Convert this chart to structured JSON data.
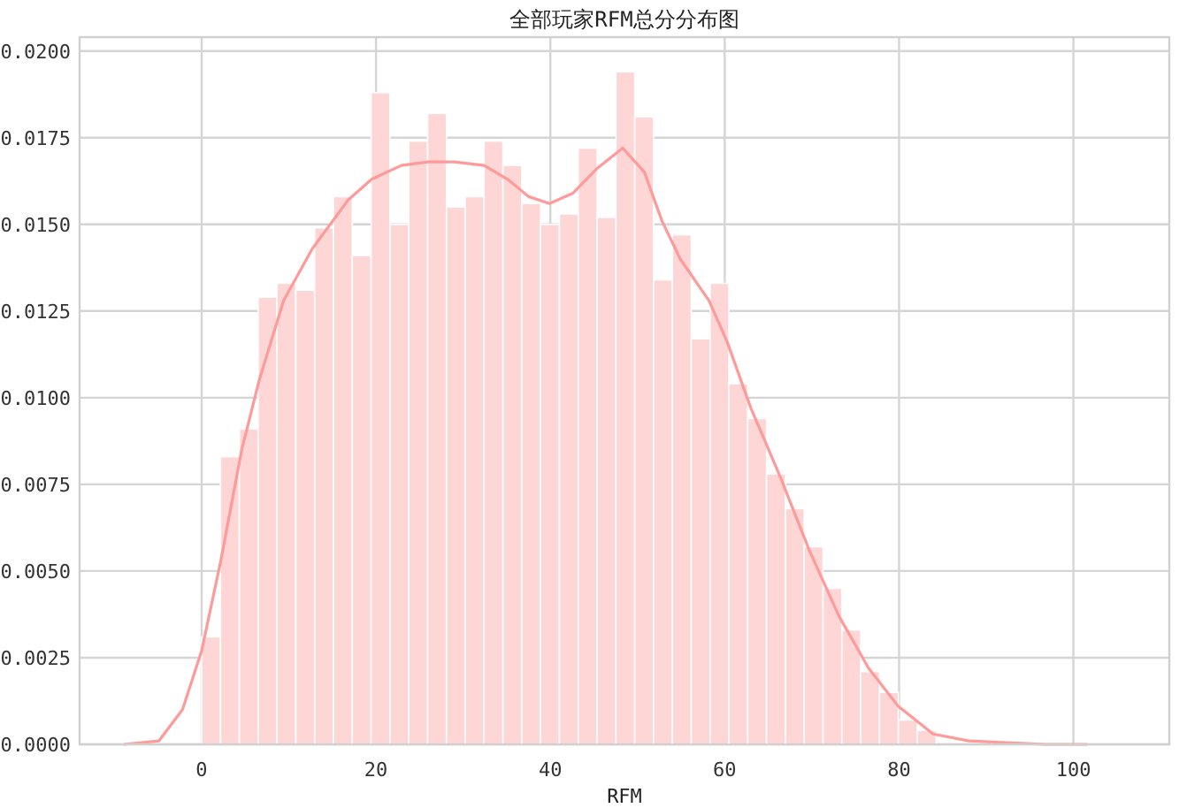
{
  "chart_data": {
    "type": "histogram",
    "title": "全部玩家RFM总分分布图",
    "xlabel": "RFM",
    "bins": [
      0,
      2.16,
      4.32,
      6.48,
      8.64,
      10.8,
      12.96,
      15.12,
      17.28,
      19.44,
      21.6,
      23.76,
      25.92,
      28.08,
      30.24,
      32.4,
      34.56,
      36.72,
      38.88,
      41.04,
      43.2,
      45.36,
      47.52,
      49.68,
      51.84,
      54,
      56.16,
      58.32,
      60.48,
      62.64,
      64.8,
      66.96,
      69.12,
      71.28,
      73.44,
      75.6,
      77.76,
      79.92,
      82.08,
      84.24
    ],
    "values": [
      0.0031,
      0.0083,
      0.0091,
      0.0129,
      0.0133,
      0.0131,
      0.0149,
      0.0158,
      0.0141,
      0.0188,
      0.015,
      0.0174,
      0.0182,
      0.0155,
      0.0158,
      0.0174,
      0.0167,
      0.0156,
      0.015,
      0.0153,
      0.0172,
      0.0152,
      0.0194,
      0.0181,
      0.0134,
      0.0147,
      0.0117,
      0.0133,
      0.0104,
      0.0094,
      0.0078,
      0.0068,
      0.0057,
      0.0045,
      0.0033,
      0.0021,
      0.0015,
      0.0007,
      0.0004
    ],
    "color": "#ffd6d6",
    "series": [
      {
        "type": "line",
        "color": "#ff9a9a",
        "x": [
          -8.9,
          -4.9,
          -2.2,
          0,
          2.2,
          4.6,
          6.6,
          9.4,
          12.7,
          16.8,
          19.5,
          22.9,
          26,
          29,
          32.4,
          35.1,
          37.5,
          39.9,
          42.6,
          45.3,
          48.3,
          50.8,
          52.8,
          54.9,
          58.2,
          60.3,
          63,
          66.4,
          69.7,
          73.1,
          76.5,
          79.9,
          83.9,
          88,
          96.8,
          101.5
        ],
        "values": [
          0,
          0.0001,
          0.001,
          0.0027,
          0.0053,
          0.0085,
          0.0105,
          0.0128,
          0.0143,
          0.0157,
          0.0163,
          0.0167,
          0.0168,
          0.0168,
          0.0167,
          0.0163,
          0.0158,
          0.0156,
          0.0159,
          0.0166,
          0.0172,
          0.0165,
          0.0151,
          0.014,
          0.0128,
          0.0116,
          0.0097,
          0.0077,
          0.0056,
          0.0037,
          0.0022,
          0.0011,
          0.0003,
          0.0001,
          0,
          0
        ]
      }
    ],
    "xlim": [
      -14,
      111
    ],
    "ylim": [
      0,
      0.0204
    ],
    "xticks": [
      0,
      20,
      40,
      60,
      80,
      100
    ],
    "yticks": [
      {
        "value": 0,
        "label": "0.0000"
      },
      {
        "value": 0.0025,
        "label": "0.0025"
      },
      {
        "value": 0.005,
        "label": "0.0050"
      },
      {
        "value": 0.0075,
        "label": "0.0075"
      },
      {
        "value": 0.01,
        "label": "0.0100"
      },
      {
        "value": 0.0125,
        "label": "0.0125"
      },
      {
        "value": 0.015,
        "label": "0.0150"
      },
      {
        "value": 0.0175,
        "label": "0.0175"
      },
      {
        "value": 0.02,
        "label": "0.0200"
      }
    ],
    "grid": true
  }
}
